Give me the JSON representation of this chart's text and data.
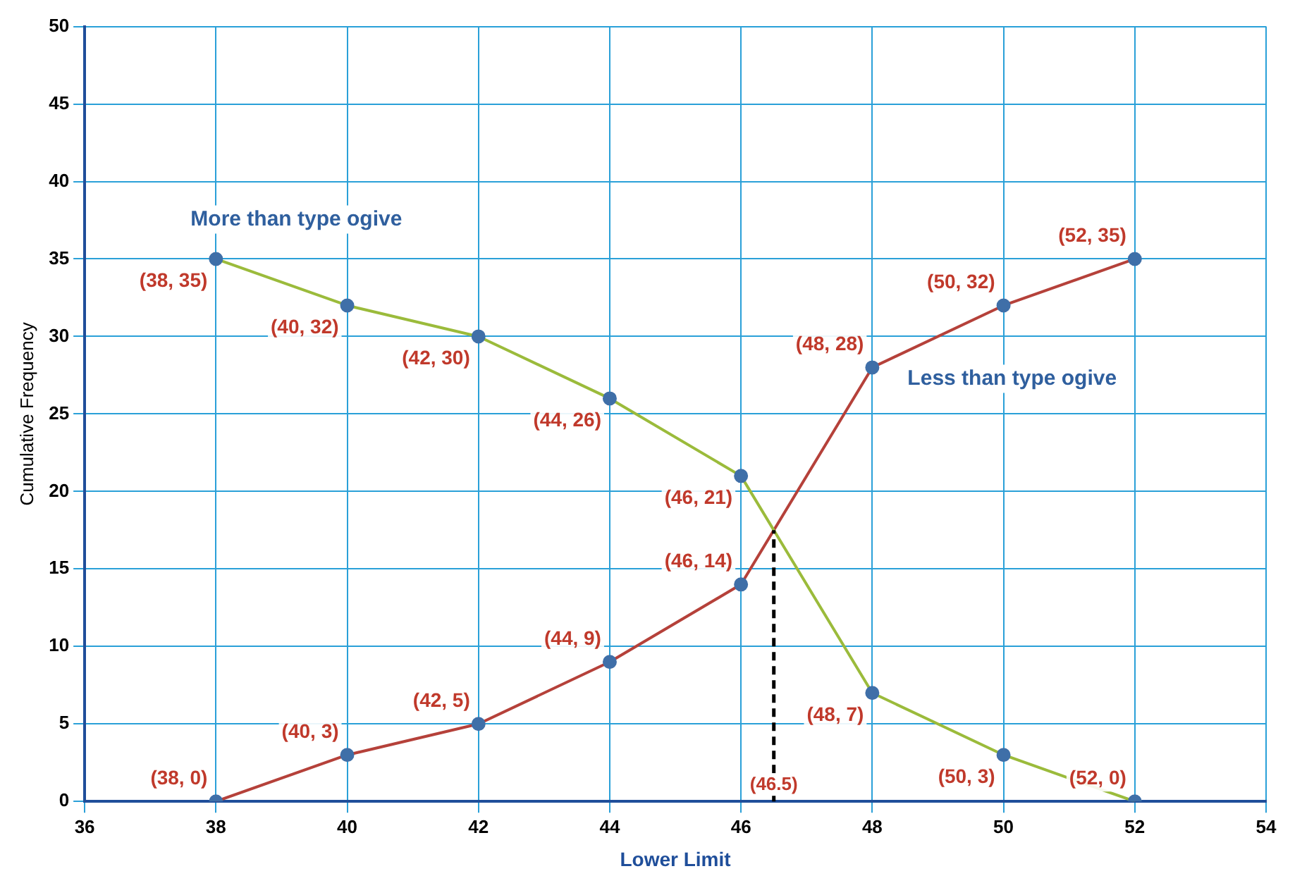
{
  "chart_data": {
    "type": "line",
    "xlabel": "Lower Limit",
    "ylabel": "Cumulative Frequency",
    "xlim": [
      36,
      54
    ],
    "xticks": [
      36,
      38,
      40,
      42,
      44,
      46,
      48,
      50,
      52,
      54
    ],
    "ylim": [
      0,
      50
    ],
    "yticks": [
      0,
      5,
      10,
      15,
      20,
      25,
      30,
      35,
      40,
      45,
      50
    ],
    "grid": true,
    "legend": false,
    "marker": "circle",
    "line_style": "solid",
    "series": [
      {
        "name": "More than type ogive",
        "color": "#9bbb3b",
        "x": [
          38,
          40,
          42,
          44,
          46,
          48,
          50,
          52
        ],
        "values": [
          35,
          32,
          30,
          26,
          21,
          7,
          3,
          0
        ],
        "value_labels": [
          "(38, 35)",
          "(40, 32)",
          "(42, 30)",
          "(44, 26)",
          "(46, 21)",
          "(48, 7)",
          "(50, 3)",
          "(52, 0)"
        ]
      },
      {
        "name": "Less than type ogive",
        "color": "#b5413a",
        "x": [
          38,
          40,
          42,
          44,
          46,
          48,
          50,
          52
        ],
        "values": [
          0,
          3,
          5,
          9,
          14,
          28,
          32,
          35
        ],
        "value_labels": [
          "(38, 0)",
          "(40, 3)",
          "(42, 5)",
          "(44, 9)",
          "(46, 14)",
          "(48, 28)",
          "(50, 32)",
          "(52, 35)"
        ]
      }
    ],
    "ref_lines": [
      {
        "axis": "x",
        "value": 46.5,
        "label": "(46.5)",
        "color": "#000000",
        "line_style": "dashed"
      }
    ]
  }
}
